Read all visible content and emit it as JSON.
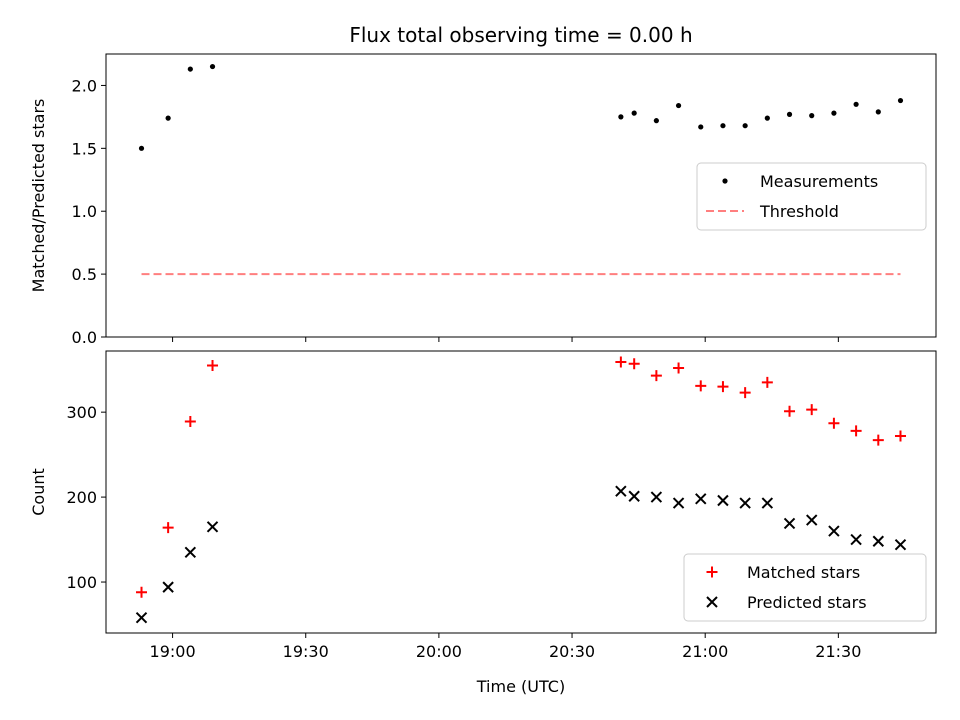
{
  "chart_data": [
    {
      "type": "scatter",
      "title": "Flux total observing time = 0.00 h",
      "xlabel": "",
      "ylabel": "Matched/Predicted stars",
      "xlim": [
        "18:45",
        "21:52"
      ],
      "ylim": [
        0,
        2.25
      ],
      "yticks": [
        {
          "value": 0,
          "label": "0.0"
        },
        {
          "value": 0.5,
          "label": "0.5"
        },
        {
          "value": 1.0,
          "label": "1.0"
        },
        {
          "value": 1.5,
          "label": "1.5"
        },
        {
          "value": 2.0,
          "label": "2.0"
        }
      ],
      "xticks": [
        "19:00",
        "19:30",
        "20:00",
        "20:30",
        "21:00",
        "21:30"
      ],
      "show_xtick_labels": false,
      "legend_position": "center-right",
      "series": [
        {
          "name": "Measurements",
          "marker": "dot",
          "color": "#000000",
          "x": [
            "18:53",
            "18:59",
            "19:04",
            "19:09",
            "20:41",
            "20:44",
            "20:49",
            "20:54",
            "20:59",
            "21:04",
            "21:09",
            "21:14",
            "21:19",
            "21:24",
            "21:29",
            "21:34",
            "21:39",
            "21:44"
          ],
          "y": [
            1.5,
            1.74,
            2.13,
            2.15,
            1.75,
            1.78,
            1.72,
            1.84,
            1.67,
            1.68,
            1.68,
            1.74,
            1.77,
            1.76,
            1.78,
            1.85,
            1.79,
            1.88
          ]
        },
        {
          "name": "Threshold",
          "marker": "dashed-line",
          "color": "#ff7f7f",
          "x": [
            "18:53",
            "21:44"
          ],
          "y": [
            0.5,
            0.5
          ]
        }
      ]
    },
    {
      "type": "scatter",
      "title": "",
      "xlabel": "Time (UTC)",
      "ylabel": "Count",
      "xlim": [
        "18:45",
        "21:52"
      ],
      "ylim": [
        40,
        372
      ],
      "yticks": [
        {
          "value": 100,
          "label": "100"
        },
        {
          "value": 200,
          "label": "200"
        },
        {
          "value": 300,
          "label": "300"
        }
      ],
      "xticks": [
        "19:00",
        "19:30",
        "20:00",
        "20:30",
        "21:00",
        "21:30"
      ],
      "show_xtick_labels": true,
      "legend_position": "lower-right",
      "series": [
        {
          "name": "Matched stars",
          "marker": "plus",
          "color": "#ff0000",
          "x": [
            "18:53",
            "18:59",
            "19:04",
            "19:09",
            "20:41",
            "20:44",
            "20:49",
            "20:54",
            "20:59",
            "21:04",
            "21:09",
            "21:14",
            "21:19",
            "21:24",
            "21:29",
            "21:34",
            "21:39",
            "21:44"
          ],
          "y": [
            88,
            164,
            289,
            355,
            359,
            357,
            343,
            352,
            331,
            330,
            323,
            335,
            301,
            303,
            287,
            278,
            267,
            272
          ]
        },
        {
          "name": "Predicted stars",
          "marker": "x",
          "color": "#000000",
          "x": [
            "18:53",
            "18:59",
            "19:04",
            "19:09",
            "20:41",
            "20:44",
            "20:49",
            "20:54",
            "20:59",
            "21:04",
            "21:09",
            "21:14",
            "21:19",
            "21:24",
            "21:29",
            "21:34",
            "21:39",
            "21:44"
          ],
          "y": [
            58,
            94,
            135,
            165,
            207,
            201,
            200,
            193,
            198,
            196,
            193,
            193,
            169,
            173,
            160,
            150,
            148,
            144
          ]
        }
      ]
    }
  ]
}
